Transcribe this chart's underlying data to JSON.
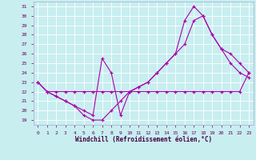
{
  "xlabel": "Windchill (Refroidissement éolien,°C)",
  "ylabel": "",
  "background_color": "#c8eef0",
  "line_color": "#aa00aa",
  "grid_color": "#ffffff",
  "xlim": [
    -0.5,
    23.5
  ],
  "ylim": [
    18.5,
    31.5
  ],
  "yticks": [
    19,
    20,
    21,
    22,
    23,
    24,
    25,
    26,
    27,
    28,
    29,
    30,
    31
  ],
  "xticks": [
    0,
    1,
    2,
    3,
    4,
    5,
    6,
    7,
    8,
    9,
    10,
    11,
    12,
    13,
    14,
    15,
    16,
    17,
    18,
    19,
    20,
    21,
    22,
    23
  ],
  "series": [
    {
      "x": [
        0,
        1,
        2,
        3,
        4,
        5,
        6,
        7,
        8,
        9,
        10,
        11,
        12,
        13,
        14,
        15,
        16,
        17,
        18,
        19,
        20,
        21,
        22,
        23
      ],
      "y": [
        23,
        22,
        22,
        22,
        22,
        22,
        22,
        22,
        22,
        22,
        22,
        22,
        22,
        22,
        22,
        22,
        22,
        22,
        22,
        22,
        22,
        22,
        22,
        24
      ]
    },
    {
      "x": [
        0,
        1,
        2,
        3,
        4,
        5,
        6,
        7,
        8,
        9,
        10,
        11,
        12,
        13,
        14,
        15,
        16,
        17,
        18,
        19,
        20,
        21,
        22,
        23
      ],
      "y": [
        23,
        22,
        21.5,
        21,
        20.5,
        20,
        19.5,
        25.5,
        24,
        19.5,
        22,
        22.5,
        23,
        24,
        25,
        26,
        29.5,
        31,
        30,
        28,
        26.5,
        25,
        24,
        23.5
      ]
    },
    {
      "x": [
        0,
        1,
        2,
        3,
        4,
        5,
        6,
        7,
        8,
        9,
        10,
        11,
        12,
        13,
        14,
        15,
        16,
        17,
        18,
        19,
        20,
        21,
        22,
        23
      ],
      "y": [
        23,
        22,
        21.5,
        21,
        20.5,
        19.5,
        19,
        19,
        20,
        21,
        22,
        22.5,
        23,
        24,
        25,
        26,
        27,
        29.5,
        30,
        28,
        26.5,
        26,
        25,
        24
      ]
    }
  ]
}
